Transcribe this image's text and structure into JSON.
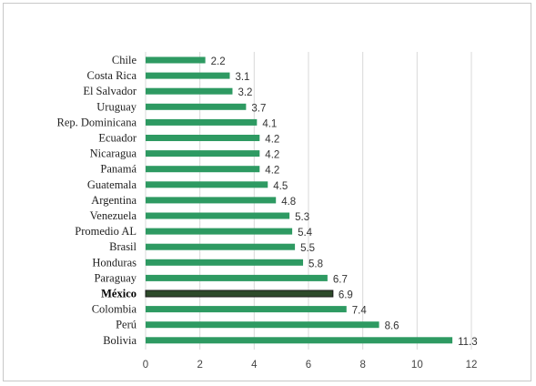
{
  "chart_data": {
    "type": "bar",
    "orientation": "horizontal",
    "title": "",
    "xlabel": "",
    "ylabel": "",
    "categories": [
      "Chile",
      "Costa Rica",
      "El Salvador",
      "Uruguay",
      "Rep. Dominicana",
      "Ecuador",
      "Nicaragua",
      "Panamá",
      "Guatemala",
      "Argentina",
      "Venezuela",
      "Promedio AL",
      "Brasil",
      "Honduras",
      "Paraguay",
      "México",
      "Colombia",
      "Perú",
      "Bolivia"
    ],
    "values": [
      2.2,
      3.1,
      3.2,
      3.7,
      4.1,
      4.2,
      4.2,
      4.2,
      4.5,
      4.8,
      5.3,
      5.4,
      5.5,
      5.8,
      6.7,
      6.9,
      7.4,
      8.6,
      11.3
    ],
    "value_labels": [
      "2.2",
      "3.1",
      "3.2",
      "3.7",
      "4.1",
      "4.2",
      "4.2",
      "4.2",
      "4.5",
      "4.8",
      "5.3",
      "5.4",
      "5.5",
      "5.8",
      "6.7",
      "6.9",
      "7.4",
      "8.6",
      "11.3"
    ],
    "highlight_category": "México",
    "xlim": [
      0,
      12
    ],
    "x_ticks": [
      0,
      2,
      4,
      6,
      8,
      10,
      12
    ],
    "x_tick_labels": [
      "0",
      "2",
      "4",
      "6",
      "8",
      "10",
      "12"
    ],
    "grid": true,
    "legend": "none",
    "colors": {
      "bar": "#2e9a62",
      "highlight_bar": "#2d4a2a",
      "grid": "#d9d9d9"
    }
  }
}
